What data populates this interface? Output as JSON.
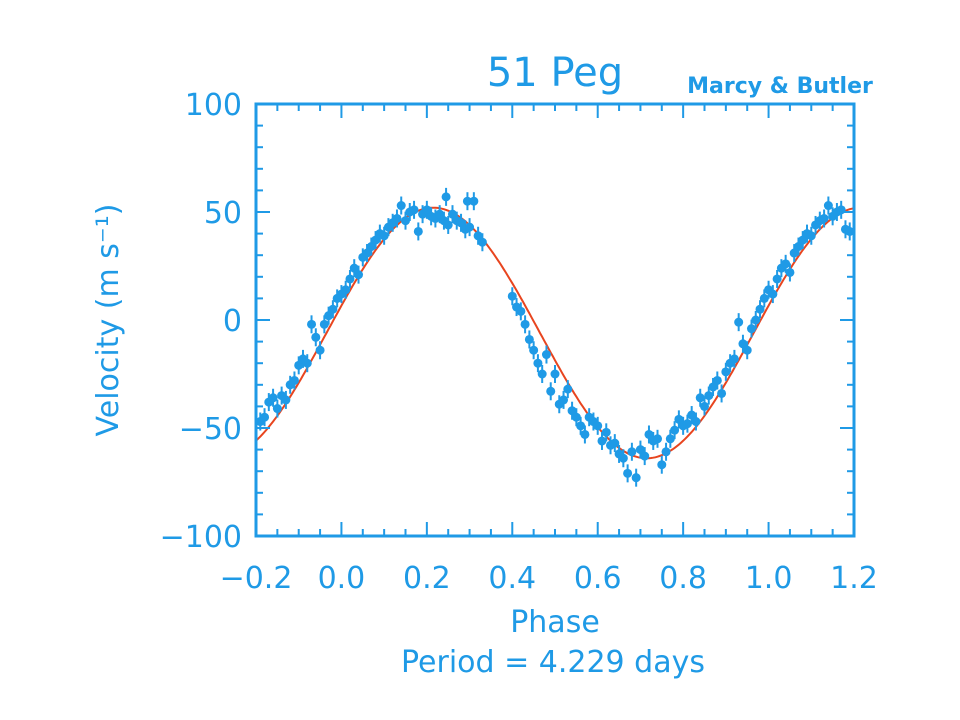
{
  "colors": {
    "accent": "#1f9ae6",
    "fit_line": "#e8451f",
    "background": "#ffffff"
  },
  "chart_data": {
    "type": "scatter",
    "title": "51 Peg",
    "credit": "Marcy & Butler",
    "xlabel": "Phase",
    "ylabel": "Velocity (m s⁻¹)",
    "xlim": [
      -0.2,
      1.2
    ],
    "ylim": [
      -100,
      100
    ],
    "x_ticks": [
      -0.2,
      0.0,
      0.2,
      0.4,
      0.6,
      0.8,
      1.0,
      1.2
    ],
    "x_tick_labels": [
      "−0.2",
      "0.0",
      "0.2",
      "0.4",
      "0.6",
      "0.8",
      "1.0",
      "1.2"
    ],
    "y_ticks": [
      100,
      50,
      0,
      -50,
      -100
    ],
    "y_tick_labels": [
      "100",
      "50",
      "0",
      "−50",
      "−100"
    ],
    "annotation": "Period = 4.229 days",
    "grid": false,
    "fit_curve": {
      "type": "sinusoid",
      "amplitude": 58,
      "offset": -6,
      "phase_of_max": 0.215,
      "period_in_phase": 1.0
    },
    "points": [
      {
        "x": -0.19,
        "y": -47
      },
      {
        "x": -0.18,
        "y": -45
      },
      {
        "x": -0.17,
        "y": -38
      },
      {
        "x": -0.16,
        "y": -36
      },
      {
        "x": -0.15,
        "y": -41
      },
      {
        "x": -0.14,
        "y": -35
      },
      {
        "x": -0.13,
        "y": -37
      },
      {
        "x": -0.12,
        "y": -30
      },
      {
        "x": -0.11,
        "y": -28
      },
      {
        "x": -0.1,
        "y": -21
      },
      {
        "x": -0.09,
        "y": -18
      },
      {
        "x": -0.08,
        "y": -20
      },
      {
        "x": -0.07,
        "y": -2
      },
      {
        "x": -0.06,
        "y": -8
      },
      {
        "x": -0.05,
        "y": -14
      },
      {
        "x": -0.04,
        "y": -2
      },
      {
        "x": -0.03,
        "y": 2
      },
      {
        "x": -0.02,
        "y": 5
      },
      {
        "x": -0.01,
        "y": 10
      },
      {
        "x": 0.0,
        "y": 12
      },
      {
        "x": 0.01,
        "y": 14
      },
      {
        "x": 0.02,
        "y": 19
      },
      {
        "x": 0.03,
        "y": 24
      },
      {
        "x": 0.04,
        "y": 21
      },
      {
        "x": 0.05,
        "y": 29
      },
      {
        "x": 0.06,
        "y": 31
      },
      {
        "x": 0.07,
        "y": 34
      },
      {
        "x": 0.08,
        "y": 37
      },
      {
        "x": 0.09,
        "y": 40
      },
      {
        "x": 0.1,
        "y": 39
      },
      {
        "x": 0.11,
        "y": 43
      },
      {
        "x": 0.12,
        "y": 45
      },
      {
        "x": 0.13,
        "y": 47
      },
      {
        "x": 0.14,
        "y": 53
      },
      {
        "x": 0.15,
        "y": 46
      },
      {
        "x": 0.16,
        "y": 50
      },
      {
        "x": 0.17,
        "y": 51
      },
      {
        "x": 0.18,
        "y": 41
      },
      {
        "x": 0.19,
        "y": 49
      },
      {
        "x": 0.2,
        "y": 51
      },
      {
        "x": 0.21,
        "y": 48
      },
      {
        "x": 0.22,
        "y": 47
      },
      {
        "x": 0.23,
        "y": 49
      },
      {
        "x": 0.24,
        "y": 46
      },
      {
        "x": 0.245,
        "y": 57
      },
      {
        "x": 0.25,
        "y": 44
      },
      {
        "x": 0.26,
        "y": 49
      },
      {
        "x": 0.27,
        "y": 46
      },
      {
        "x": 0.28,
        "y": 45
      },
      {
        "x": 0.29,
        "y": 42
      },
      {
        "x": 0.295,
        "y": 55
      },
      {
        "x": 0.3,
        "y": 43
      },
      {
        "x": 0.31,
        "y": 55
      },
      {
        "x": 0.32,
        "y": 39
      },
      {
        "x": 0.33,
        "y": 36
      },
      {
        "x": 0.4,
        "y": 11
      },
      {
        "x": 0.41,
        "y": 6
      },
      {
        "x": 0.42,
        "y": 4
      },
      {
        "x": 0.43,
        "y": -2
      },
      {
        "x": 0.44,
        "y": -9
      },
      {
        "x": 0.45,
        "y": -14
      },
      {
        "x": 0.46,
        "y": -20
      },
      {
        "x": 0.47,
        "y": -25
      },
      {
        "x": 0.48,
        "y": -16
      },
      {
        "x": 0.49,
        "y": -33
      },
      {
        "x": 0.5,
        "y": -25
      },
      {
        "x": 0.51,
        "y": -39
      },
      {
        "x": 0.52,
        "y": -37
      },
      {
        "x": 0.53,
        "y": -32
      },
      {
        "x": 0.54,
        "y": -42
      },
      {
        "x": 0.55,
        "y": -45
      },
      {
        "x": 0.56,
        "y": -49
      },
      {
        "x": 0.57,
        "y": -53
      },
      {
        "x": 0.58,
        "y": -45
      },
      {
        "x": 0.59,
        "y": -47
      },
      {
        "x": 0.6,
        "y": -49
      },
      {
        "x": 0.61,
        "y": -56
      },
      {
        "x": 0.62,
        "y": -52
      },
      {
        "x": 0.63,
        "y": -58
      },
      {
        "x": 0.64,
        "y": -57
      },
      {
        "x": 0.65,
        "y": -62
      },
      {
        "x": 0.66,
        "y": -64
      },
      {
        "x": 0.67,
        "y": -71
      },
      {
        "x": 0.68,
        "y": -61
      },
      {
        "x": 0.69,
        "y": -73
      },
      {
        "x": 0.7,
        "y": -60
      },
      {
        "x": 0.71,
        "y": -63
      },
      {
        "x": 0.72,
        "y": -53
      },
      {
        "x": 0.73,
        "y": -56
      },
      {
        "x": 0.74,
        "y": -55
      },
      {
        "x": 0.75,
        "y": -67
      },
      {
        "x": 0.76,
        "y": -61
      },
      {
        "x": 0.77,
        "y": -55
      },
      {
        "x": 0.78,
        "y": -51
      },
      {
        "x": 0.79,
        "y": -46
      },
      {
        "x": 0.8,
        "y": -49
      },
      {
        "x": 0.81,
        "y": -48
      },
      {
        "x": 0.82,
        "y": -44
      },
      {
        "x": 0.83,
        "y": -47
      },
      {
        "x": 0.84,
        "y": -36
      },
      {
        "x": 0.85,
        "y": -40
      },
      {
        "x": 0.86,
        "y": -35
      },
      {
        "x": 0.87,
        "y": -31
      },
      {
        "x": 0.88,
        "y": -28
      },
      {
        "x": 0.89,
        "y": -34
      },
      {
        "x": 0.9,
        "y": -24
      },
      {
        "x": 0.91,
        "y": -20
      },
      {
        "x": 0.92,
        "y": -18
      },
      {
        "x": 0.93,
        "y": -1
      },
      {
        "x": 0.94,
        "y": -11
      },
      {
        "x": 0.95,
        "y": -14
      },
      {
        "x": 0.96,
        "y": -4
      },
      {
        "x": 0.97,
        "y": 0
      },
      {
        "x": 0.98,
        "y": 5
      },
      {
        "x": 0.99,
        "y": 10
      },
      {
        "x": 1.0,
        "y": 14
      },
      {
        "x": 1.01,
        "y": 12
      },
      {
        "x": 1.02,
        "y": 19
      },
      {
        "x": 1.03,
        "y": 24
      },
      {
        "x": 1.04,
        "y": 26
      },
      {
        "x": 1.05,
        "y": 22
      },
      {
        "x": 1.06,
        "y": 31
      },
      {
        "x": 1.07,
        "y": 34
      },
      {
        "x": 1.08,
        "y": 37
      },
      {
        "x": 1.09,
        "y": 40
      },
      {
        "x": 1.1,
        "y": 39
      },
      {
        "x": 1.11,
        "y": 44
      },
      {
        "x": 1.12,
        "y": 46
      },
      {
        "x": 1.13,
        "y": 47
      },
      {
        "x": 1.14,
        "y": 53
      },
      {
        "x": 1.15,
        "y": 48
      },
      {
        "x": 1.16,
        "y": 50
      },
      {
        "x": 1.17,
        "y": 51
      },
      {
        "x": 1.18,
        "y": 42
      },
      {
        "x": 1.19,
        "y": 41
      }
    ]
  }
}
